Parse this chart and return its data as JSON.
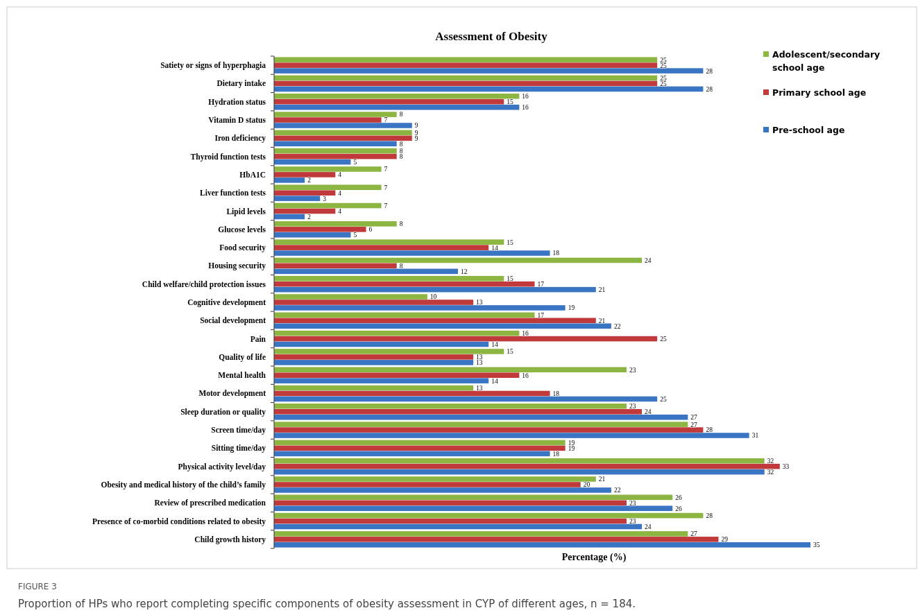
{
  "chart_data": {
    "type": "bar",
    "orientation": "horizontal",
    "title": "Assessment of Obesity",
    "xlabel": "Percentage (%)",
    "categories": [
      "Satiety or signs of hyperphagia",
      "Dietary intake",
      "Hydration status",
      "Vitamin D status",
      "Iron deficiency",
      "Thyroid function tests",
      "HbA1C",
      "Liver function tests",
      "Lipid levels",
      "Glucose levels",
      "Food security",
      "Housing security",
      "Child welfare/child protection issues",
      "Cognitive development",
      "Social development",
      "Pain",
      "Quality of life",
      "Mental health",
      "Motor development",
      "Sleep duration or quality",
      "Screen time/day",
      "Sitting time/day",
      "Physical activity level/day",
      "Obesity and medical history of the child’s family",
      "Review of prescribed medication",
      "Presence of co-morbid conditions related to obesity",
      "Child growth history"
    ],
    "series": [
      {
        "name": "Adolescent/secondary school age",
        "color": "#8db541",
        "values": [
          25,
          25,
          16,
          8,
          9,
          8,
          7,
          7,
          7,
          8,
          15,
          24,
          15,
          10,
          17,
          16,
          15,
          23,
          13,
          23,
          27,
          19,
          32,
          21,
          26,
          28,
          27
        ]
      },
      {
        "name": "Primary school age",
        "color": "#c0393b",
        "values": [
          25,
          25,
          15,
          7,
          9,
          8,
          4,
          4,
          4,
          6,
          14,
          8,
          17,
          13,
          21,
          25,
          13,
          16,
          18,
          24,
          28,
          19,
          33,
          20,
          23,
          23,
          29
        ]
      },
      {
        "name": "Pre-school age",
        "color": "#3a75c3",
        "values": [
          28,
          28,
          16,
          9,
          8,
          5,
          2,
          3,
          2,
          5,
          18,
          12,
          21,
          19,
          22,
          14,
          13,
          14,
          25,
          27,
          31,
          18,
          32,
          22,
          26,
          24,
          35
        ]
      }
    ],
    "data_labels": true,
    "legend": "top right",
    "annotations": [
      "FIGURE 3",
      "Proportion of HPs who report completing specific components of obesity assessment in CYP of different ages, n = 184."
    ]
  }
}
